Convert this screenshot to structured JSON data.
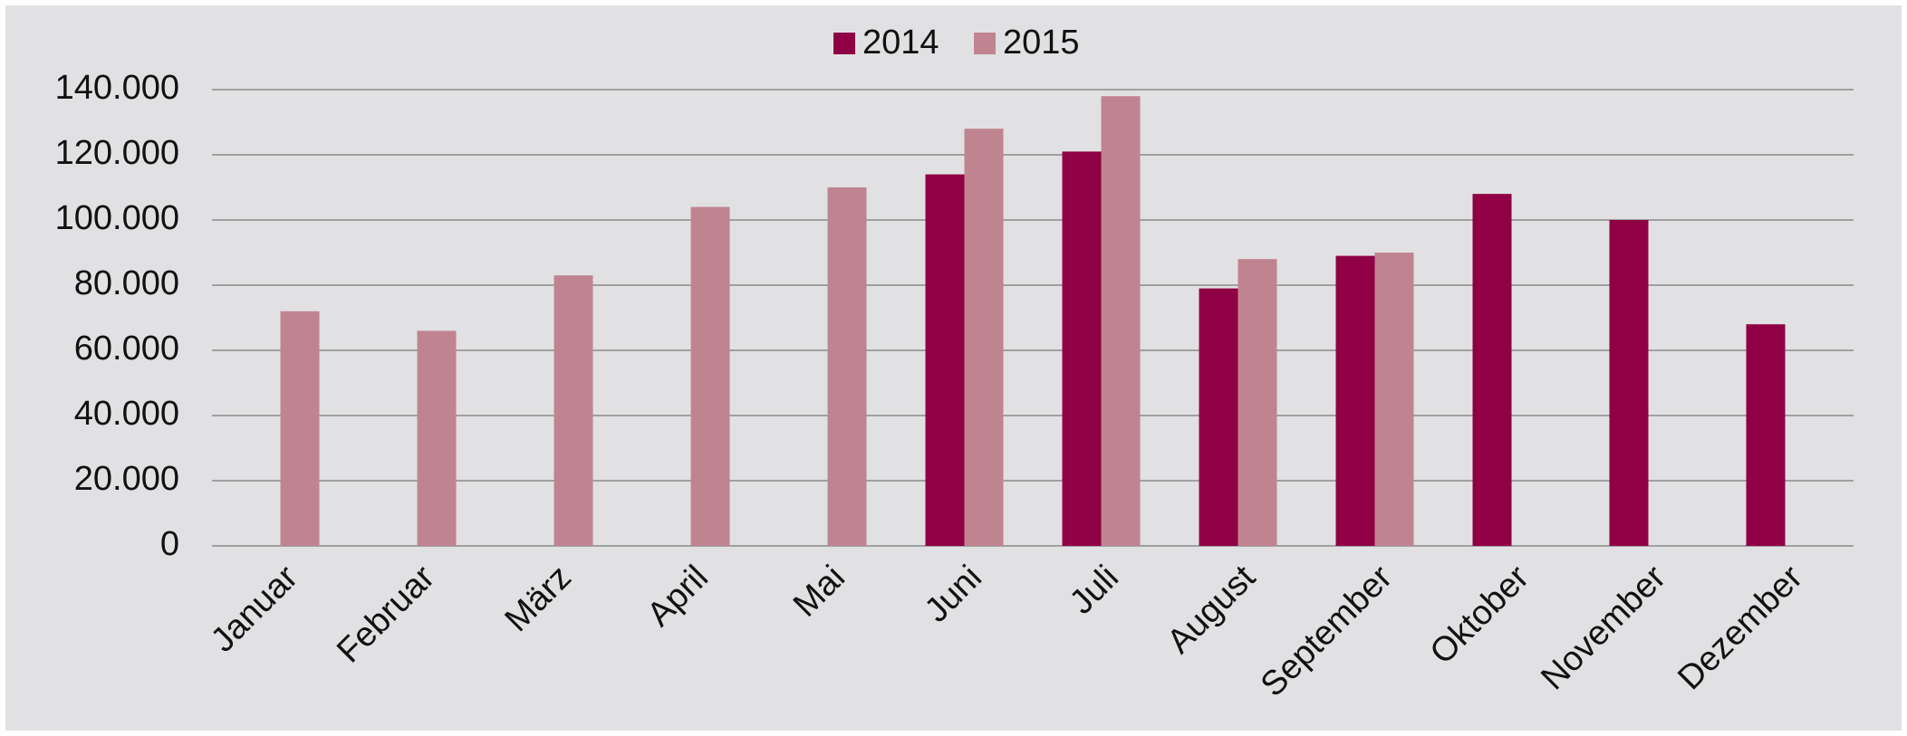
{
  "chart_data": {
    "type": "bar",
    "categories": [
      "Januar",
      "Februar",
      "März",
      "April",
      "Mai",
      "Juni",
      "Juli",
      "August",
      "September",
      "Oktober",
      "November",
      "Dezember"
    ],
    "series": [
      {
        "name": "2014",
        "color": "#8f0044",
        "values": [
          null,
          null,
          null,
          null,
          null,
          114000,
          121000,
          79000,
          89000,
          108000,
          100000,
          68000
        ]
      },
      {
        "name": "2015",
        "color": "#c08490",
        "values": [
          72000,
          66000,
          83000,
          104000,
          110000,
          128000,
          138000,
          88000,
          90000,
          null,
          null,
          null
        ]
      }
    ],
    "ylim": [
      0,
      140000
    ],
    "yticks": [
      0,
      {
        "value": 20000,
        "label": "20.000"
      },
      {
        "value": 40000,
        "label": "40.000"
      },
      {
        "value": 60000,
        "label": "60.000"
      },
      {
        "value": 80000,
        "label": "80.000"
      },
      {
        "value": 100000,
        "label": "100.000"
      },
      {
        "value": 120000,
        "label": "120.000"
      },
      {
        "value": 140000,
        "label": "140.000"
      }
    ],
    "grid": true,
    "legend": "top"
  }
}
